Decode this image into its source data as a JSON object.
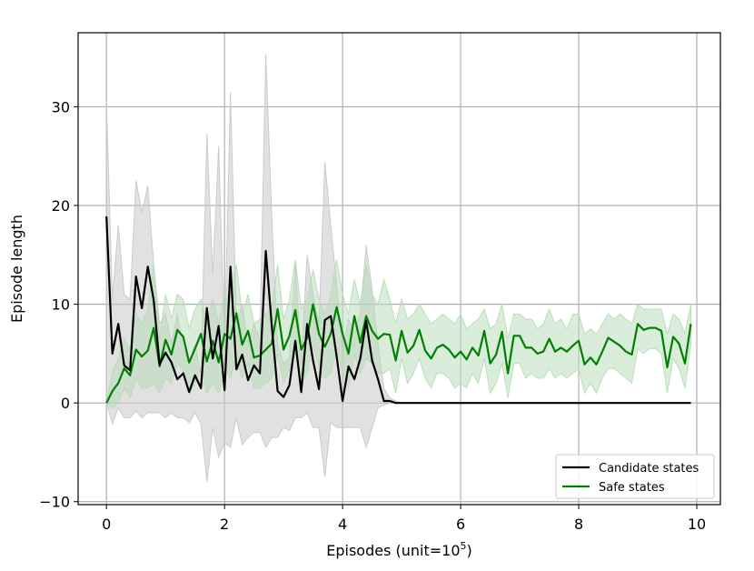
{
  "chart_data": {
    "type": "line",
    "xlabel": "Episodes (unit=10",
    "xlabel_exp": "5",
    "xlabel_close": ")",
    "ylabel": "Episode length",
    "xlim": [
      -0.48,
      10.4
    ],
    "ylim": [
      -10.3,
      37.5
    ],
    "xticks": [
      0,
      2,
      4,
      6,
      8,
      10
    ],
    "yticks": [
      -10,
      0,
      10,
      20,
      30
    ],
    "xtick_labels": [
      "0",
      "2",
      "4",
      "6",
      "8",
      "10"
    ],
    "ytick_labels": [
      "−10",
      "0",
      "10",
      "20",
      "30"
    ],
    "grid": true,
    "legend_position": "lower-right",
    "colors": {
      "candidate": "#000000",
      "safe": "#008000",
      "candidate_band": "#c8c8c8",
      "safe_band": "#b5dcb5"
    },
    "series": [
      {
        "name": "Candidate states",
        "x": [
          0.0,
          0.1,
          0.2,
          0.3,
          0.4,
          0.5,
          0.6,
          0.7,
          0.8,
          0.9,
          1.0,
          1.1,
          1.2,
          1.3,
          1.4,
          1.5,
          1.6,
          1.7,
          1.8,
          1.9,
          2.0,
          2.1,
          2.2,
          2.3,
          2.4,
          2.5,
          2.6,
          2.7,
          2.8,
          2.9,
          3.0,
          3.1,
          3.2,
          3.3,
          3.4,
          3.5,
          3.6,
          3.7,
          3.8,
          3.9,
          4.0,
          4.1,
          4.2,
          4.3,
          4.4,
          4.5,
          4.6,
          4.7,
          4.8,
          4.9,
          5.0,
          9.9
        ],
        "y": [
          18.9,
          5.0,
          8.0,
          3.8,
          3.3,
          12.8,
          9.6,
          13.8,
          10.4,
          3.9,
          5.1,
          4.1,
          2.4,
          3.0,
          1.1,
          2.8,
          1.5,
          9.6,
          4.5,
          7.8,
          1.3,
          13.8,
          3.4,
          4.9,
          2.3,
          3.8,
          3.0,
          15.4,
          7.9,
          1.2,
          0.6,
          1.8,
          6.3,
          1.1,
          8.0,
          4.3,
          1.4,
          8.4,
          8.8,
          4.7,
          0.2,
          3.7,
          2.4,
          4.5,
          8.3,
          4.3,
          2.4,
          0.2,
          0.2,
          0.0,
          0.0,
          0.0
        ]
      },
      {
        "name": "Safe states",
        "x": [
          0.0,
          0.1,
          0.2,
          0.3,
          0.4,
          0.5,
          0.6,
          0.7,
          0.8,
          0.9,
          1.0,
          1.1,
          1.2,
          1.3,
          1.4,
          1.5,
          1.6,
          1.7,
          1.8,
          1.9,
          2.0,
          2.1,
          2.2,
          2.3,
          2.4,
          2.5,
          2.6,
          2.7,
          2.8,
          2.9,
          3.0,
          3.1,
          3.2,
          3.3,
          3.4,
          3.5,
          3.6,
          3.7,
          3.8,
          3.9,
          4.0,
          4.1,
          4.2,
          4.3,
          4.4,
          4.5,
          4.6,
          4.7,
          4.8,
          4.9,
          5.0,
          5.1,
          5.2,
          5.3,
          5.4,
          5.5,
          5.6,
          5.7,
          5.8,
          5.9,
          6.0,
          6.1,
          6.2,
          6.3,
          6.4,
          6.5,
          6.6,
          6.7,
          6.8,
          6.9,
          7.0,
          7.1,
          7.2,
          7.3,
          7.4,
          7.5,
          7.6,
          7.7,
          7.8,
          7.9,
          8.0,
          8.1,
          8.2,
          8.3,
          8.4,
          8.5,
          8.6,
          8.7,
          8.8,
          8.9,
          9.0,
          9.1,
          9.2,
          9.3,
          9.4,
          9.5,
          9.6,
          9.7,
          9.8,
          9.9
        ],
        "y": [
          0.0,
          1.2,
          2.0,
          3.5,
          2.8,
          5.4,
          4.7,
          5.3,
          7.6,
          3.7,
          6.4,
          4.9,
          7.4,
          6.7,
          4.1,
          5.5,
          7.0,
          4.2,
          6.3,
          4.1,
          7.0,
          6.5,
          9.1,
          5.9,
          7.3,
          4.6,
          4.8,
          5.4,
          6.0,
          9.5,
          5.4,
          6.8,
          9.4,
          5.4,
          6.6,
          10.0,
          7.0,
          5.7,
          7.0,
          9.7,
          7.0,
          5.0,
          8.8,
          6.1,
          8.8,
          7.3,
          6.5,
          7.0,
          6.9,
          4.3,
          7.3,
          5.1,
          5.8,
          7.4,
          5.3,
          4.5,
          5.6,
          5.9,
          5.4,
          4.6,
          5.2,
          4.4,
          5.6,
          4.8,
          7.3,
          4.0,
          4.9,
          7.2,
          3.0,
          6.8,
          6.8,
          5.6,
          5.6,
          5.0,
          5.2,
          6.5,
          5.2,
          5.6,
          5.2,
          5.8,
          6.3,
          3.9,
          4.6,
          3.9,
          5.2,
          6.6,
          6.2,
          5.8,
          5.2,
          4.9,
          8.0,
          7.4,
          7.6,
          7.6,
          7.3,
          3.6,
          6.7,
          6.0,
          4.0,
          8.0
        ]
      }
    ],
    "bands": [
      {
        "series": "Candidate states",
        "x": [
          0.0,
          0.1,
          0.2,
          0.3,
          0.4,
          0.5,
          0.6,
          0.7,
          0.8,
          0.9,
          1.0,
          1.1,
          1.2,
          1.3,
          1.4,
          1.5,
          1.6,
          1.7,
          1.8,
          1.9,
          2.0,
          2.1,
          2.2,
          2.3,
          2.4,
          2.5,
          2.6,
          2.7,
          2.8,
          2.9,
          3.0,
          3.1,
          3.2,
          3.3,
          3.4,
          3.5,
          3.6,
          3.7,
          3.8,
          3.9,
          4.0,
          4.1,
          4.2,
          4.3,
          4.4,
          4.5,
          4.6,
          4.7,
          4.8,
          4.9,
          5.0
        ],
        "upper": [
          30.5,
          10.5,
          18.0,
          11.0,
          10.5,
          22.5,
          19.3,
          22.0,
          14.0,
          8.0,
          9.0,
          6.0,
          9.0,
          5.5,
          4.0,
          6.0,
          3.0,
          27.3,
          13.0,
          26.0,
          6.0,
          31.5,
          8.0,
          10.0,
          6.0,
          8.0,
          6.5,
          35.3,
          19.0,
          6.0,
          4.0,
          4.5,
          14.0,
          4.0,
          15.0,
          11.0,
          8.0,
          24.4,
          18.0,
          12.0,
          5.0,
          8.5,
          7.0,
          9.0,
          16.0,
          11.5,
          6.0,
          1.5,
          0.5,
          0.2,
          0.0
        ],
        "lower": [
          0.0,
          -2.1,
          -0.5,
          -1.5,
          -1.5,
          -0.8,
          -1.5,
          -1.0,
          -1.0,
          -1.0,
          -1.5,
          -1.0,
          -1.5,
          -1.5,
          -2.0,
          -1.0,
          -2.1,
          -8.0,
          -2.5,
          -5.5,
          -4.0,
          -4.5,
          -1.5,
          -4.2,
          -3.5,
          -3.0,
          -3.0,
          -4.5,
          -3.5,
          -3.5,
          -2.5,
          -2.8,
          -1.5,
          -1.5,
          -1.0,
          -2.5,
          -2.5,
          -7.5,
          -2.0,
          -2.5,
          -2.5,
          -2.5,
          -2.5,
          -2.5,
          -4.5,
          -2.5,
          -0.5,
          -0.2,
          0.0,
          0.0,
          0.0
        ]
      },
      {
        "series": "Safe states",
        "x": [
          0.0,
          0.1,
          0.2,
          0.3,
          0.4,
          0.5,
          0.6,
          0.7,
          0.8,
          0.9,
          1.0,
          1.1,
          1.2,
          1.3,
          1.4,
          1.5,
          1.6,
          1.7,
          1.8,
          1.9,
          2.0,
          2.1,
          2.2,
          2.3,
          2.4,
          2.5,
          2.6,
          2.7,
          2.8,
          2.9,
          3.0,
          3.1,
          3.2,
          3.3,
          3.4,
          3.5,
          3.6,
          3.7,
          3.8,
          3.9,
          4.0,
          4.1,
          4.2,
          4.3,
          4.4,
          4.5,
          4.6,
          4.7,
          4.8,
          4.9,
          5.0,
          5.1,
          5.2,
          5.3,
          5.4,
          5.5,
          5.6,
          5.7,
          5.8,
          5.9,
          6.0,
          6.1,
          6.2,
          6.3,
          6.4,
          6.5,
          6.6,
          6.7,
          6.8,
          6.9,
          7.0,
          7.1,
          7.2,
          7.3,
          7.4,
          7.5,
          7.6,
          7.7,
          7.8,
          7.9,
          8.0,
          8.1,
          8.2,
          8.3,
          8.4,
          8.5,
          8.6,
          8.7,
          8.8,
          8.9,
          9.0,
          9.1,
          9.2,
          9.3,
          9.4,
          9.5,
          9.6,
          9.7,
          9.8,
          9.9
        ],
        "upper": [
          0.0,
          3.0,
          4.5,
          6.5,
          5.5,
          9.0,
          8.0,
          9.5,
          14.0,
          6.5,
          11.0,
          8.5,
          11.0,
          10.5,
          7.5,
          9.5,
          10.5,
          8.0,
          10.5,
          8.0,
          11.0,
          10.5,
          14.0,
          9.0,
          11.0,
          8.0,
          8.5,
          9.0,
          9.5,
          14.0,
          8.5,
          10.5,
          14.5,
          9.5,
          10.5,
          13.5,
          10.5,
          9.0,
          11.0,
          14.5,
          11.0,
          9.0,
          12.5,
          10.0,
          14.0,
          11.0,
          10.0,
          12.5,
          10.5,
          8.0,
          10.5,
          8.5,
          9.0,
          10.0,
          9.0,
          8.0,
          8.5,
          9.0,
          8.5,
          8.0,
          9.0,
          7.5,
          8.0,
          8.5,
          9.5,
          7.5,
          8.0,
          10.0,
          6.5,
          9.0,
          9.0,
          8.5,
          8.5,
          7.5,
          8.0,
          9.5,
          8.0,
          8.5,
          7.5,
          9.0,
          9.0,
          7.0,
          7.5,
          7.0,
          8.0,
          9.0,
          8.5,
          9.0,
          8.5,
          8.0,
          10.0,
          9.5,
          9.5,
          9.5,
          9.5,
          7.0,
          9.0,
          8.5,
          7.0,
          10.0
        ],
        "lower": [
          0.0,
          -0.5,
          0.0,
          1.5,
          0.5,
          2.5,
          1.5,
          1.5,
          2.0,
          1.0,
          2.5,
          2.0,
          4.0,
          3.5,
          1.0,
          2.0,
          3.5,
          1.0,
          2.0,
          1.0,
          3.5,
          2.5,
          4.5,
          2.5,
          4.0,
          1.5,
          1.5,
          2.0,
          2.5,
          5.0,
          2.0,
          3.5,
          5.0,
          2.0,
          3.0,
          6.0,
          3.5,
          2.5,
          3.0,
          5.5,
          3.0,
          1.5,
          5.0,
          3.0,
          4.5,
          4.0,
          3.0,
          3.0,
          3.5,
          1.0,
          4.5,
          2.0,
          3.0,
          4.5,
          2.5,
          1.5,
          3.0,
          3.0,
          2.5,
          1.5,
          2.0,
          1.5,
          3.0,
          2.0,
          4.5,
          1.0,
          2.0,
          4.0,
          0.5,
          4.0,
          4.0,
          2.5,
          3.0,
          2.5,
          2.5,
          3.5,
          2.5,
          3.0,
          2.5,
          3.0,
          3.5,
          1.0,
          2.0,
          1.0,
          2.5,
          3.5,
          3.5,
          3.0,
          2.5,
          2.0,
          5.5,
          5.0,
          5.5,
          5.5,
          5.0,
          1.0,
          4.5,
          3.5,
          1.5,
          6.0
        ]
      }
    ]
  }
}
